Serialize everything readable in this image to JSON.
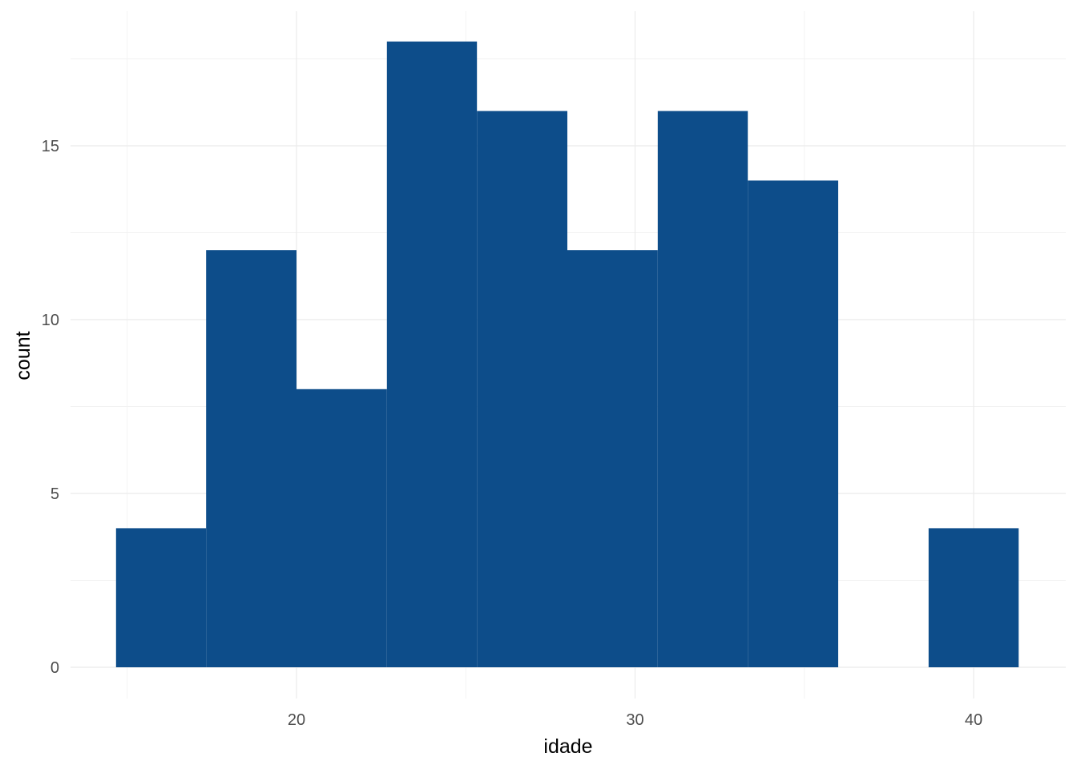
{
  "chart_data": {
    "type": "histogram",
    "xlabel": "idade",
    "ylabel": "count",
    "x_ticks": [
      20,
      30,
      40
    ],
    "y_ticks": [
      0,
      5,
      10,
      15
    ],
    "xlim": [
      14,
      42.5
    ],
    "ylim": [
      0,
      18
    ],
    "bar_color": "#0d4d8a",
    "grid": true,
    "bins": [
      {
        "x0": 14.67,
        "x1": 17.33,
        "count": 4
      },
      {
        "x0": 17.33,
        "x1": 20.0,
        "count": 12
      },
      {
        "x0": 20.0,
        "x1": 22.67,
        "count": 8
      },
      {
        "x0": 22.67,
        "x1": 25.33,
        "count": 18
      },
      {
        "x0": 25.33,
        "x1": 28.0,
        "count": 16
      },
      {
        "x0": 28.0,
        "x1": 30.67,
        "count": 12
      },
      {
        "x0": 30.67,
        "x1": 33.33,
        "count": 16
      },
      {
        "x0": 33.33,
        "x1": 36.0,
        "count": 14
      },
      {
        "x0": 36.0,
        "x1": 38.67,
        "count": 0
      },
      {
        "x0": 38.67,
        "x1": 41.33,
        "count": 4
      }
    ]
  }
}
